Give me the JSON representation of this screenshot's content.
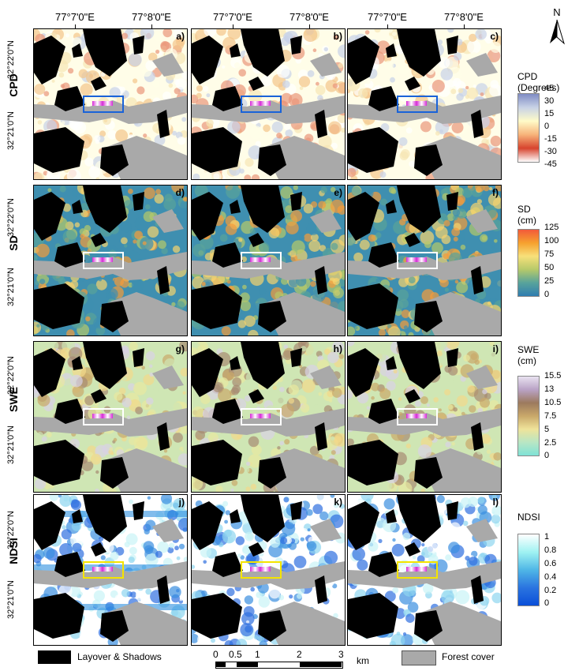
{
  "longitude_labels": [
    "77°7'0\"E",
    "77°8'0\"E"
  ],
  "latitude_labels": [
    "32°22'0\"N",
    "32°21'0\"N"
  ],
  "rows": [
    {
      "name": "CPD",
      "panels": [
        "a)",
        "b)",
        "c)"
      ],
      "roi_color": "#1a63d8"
    },
    {
      "name": "SD",
      "panels": [
        "d)",
        "e)",
        "f)"
      ],
      "roi_color": "#ffffff"
    },
    {
      "name": "SWE",
      "panels": [
        "g)",
        "h)",
        "i)"
      ],
      "roi_color": "#ffffff"
    },
    {
      "name": "NDSI",
      "panels": [
        "j)",
        "k)",
        "l)"
      ],
      "roi_color": "#f4e400"
    }
  ],
  "north_arrow": "N",
  "legends": {
    "cpd": {
      "title": "CPD\n(Degrees)",
      "ticks": [
        "45",
        "30",
        "15",
        "0",
        "-15",
        "-30",
        "-45"
      ]
    },
    "sd": {
      "title": "SD\n(cm)",
      "ticks": [
        "125",
        "100",
        "75",
        "50",
        "25",
        "0"
      ]
    },
    "swe": {
      "title": "SWE\n(cm)",
      "ticks": [
        "15.5",
        "13",
        "10.5",
        "7.5",
        "5",
        "2.5",
        "0"
      ]
    },
    "ndsi": {
      "title": "NDSI",
      "ticks": [
        "1",
        "0.8",
        "0.6",
        "0.4",
        "0.2",
        "0"
      ]
    }
  },
  "bottom_legend": {
    "layover": "Layover & Shadows",
    "forest": "Forest cover",
    "scale_ticks": [
      "0",
      "0.5",
      "1",
      "2",
      "3"
    ],
    "scale_unit": "km"
  },
  "colors": {
    "layover": "#000000",
    "forest": "#a9a9a9",
    "sd_base": "#3f8fb0",
    "swe_base": "#cfe6b4",
    "ndsi_base": "#ffffff"
  }
}
